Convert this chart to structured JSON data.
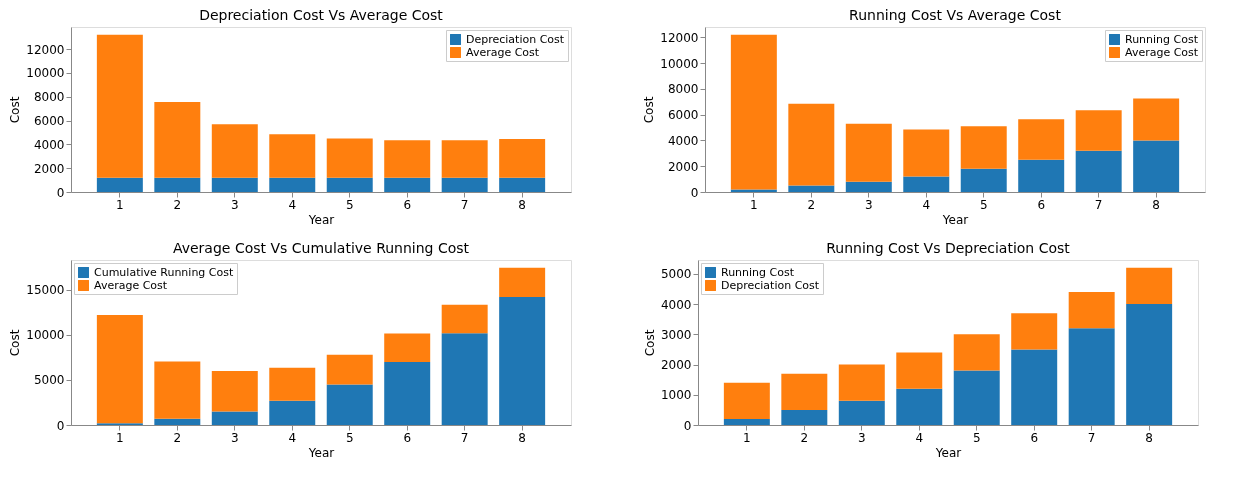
{
  "chart_data": [
    {
      "type": "bar",
      "title": "Depreciation Cost Vs Average Cost",
      "xlabel": "Year",
      "ylabel": "Cost",
      "categories": [
        "1",
        "2",
        "3",
        "4",
        "5",
        "6",
        "7",
        "8"
      ],
      "stacked": true,
      "legend": "top right",
      "grid": false,
      "ylim": [
        0,
        13860
      ],
      "yticks": [
        0,
        2000,
        4000,
        6000,
        8000,
        10000,
        12000
      ],
      "series": [
        {
          "name": "Depreciation Cost",
          "color": "#1f77b4",
          "values": [
            1200,
            1200,
            1200,
            1200,
            1200,
            1200,
            1200,
            1200
          ]
        },
        {
          "name": "Average Cost",
          "color": "#ff7f0e",
          "values": [
            12000,
            6350,
            4500,
            3650,
            3300,
            3150,
            3150,
            3250
          ]
        }
      ]
    },
    {
      "type": "bar",
      "title": "Running Cost Vs Average Cost",
      "xlabel": "Year",
      "ylabel": "Cost",
      "categories": [
        "1",
        "2",
        "3",
        "4",
        "5",
        "6",
        "7",
        "8"
      ],
      "stacked": true,
      "legend": "top right",
      "grid": false,
      "ylim": [
        0,
        12810
      ],
      "yticks": [
        0,
        2000,
        4000,
        6000,
        8000,
        10000,
        12000
      ],
      "series": [
        {
          "name": "Running Cost",
          "color": "#1f77b4",
          "values": [
            200,
            500,
            800,
            1200,
            1800,
            2500,
            3200,
            4000
          ]
        },
        {
          "name": "Average Cost",
          "color": "#ff7f0e",
          "values": [
            12000,
            6350,
            4500,
            3650,
            3300,
            3150,
            3150,
            3250
          ]
        }
      ]
    },
    {
      "type": "bar",
      "title": "Average Cost Vs Cumulative Running Cost",
      "xlabel": "Year",
      "ylabel": "Cost",
      "categories": [
        "1",
        "2",
        "3",
        "4",
        "5",
        "6",
        "7",
        "8"
      ],
      "stacked": true,
      "legend": "top left",
      "grid": false,
      "ylim": [
        0,
        18320
      ],
      "yticks": [
        0,
        5000,
        10000,
        15000
      ],
      "series": [
        {
          "name": "Cumulative Running Cost",
          "color": "#1f77b4",
          "values": [
            200,
            700,
            1500,
            2700,
            4500,
            7000,
            10200,
            14200
          ]
        },
        {
          "name": "Average Cost",
          "color": "#ff7f0e",
          "values": [
            12000,
            6350,
            4500,
            3650,
            3300,
            3150,
            3150,
            3250
          ]
        }
      ]
    },
    {
      "type": "bar",
      "title": "Running Cost Vs Depreciation Cost",
      "xlabel": "Year",
      "ylabel": "Cost",
      "categories": [
        "1",
        "2",
        "3",
        "4",
        "5",
        "6",
        "7",
        "8"
      ],
      "stacked": true,
      "legend": "top left",
      "grid": false,
      "ylim": [
        0,
        5460
      ],
      "yticks": [
        0,
        1000,
        2000,
        3000,
        4000,
        5000
      ],
      "series": [
        {
          "name": "Running Cost",
          "color": "#1f77b4",
          "values": [
            200,
            500,
            800,
            1200,
            1800,
            2500,
            3200,
            4000
          ]
        },
        {
          "name": "Depreciation Cost",
          "color": "#ff7f0e",
          "values": [
            1200,
            1200,
            1200,
            1200,
            1200,
            1200,
            1200,
            1200
          ]
        }
      ]
    }
  ]
}
